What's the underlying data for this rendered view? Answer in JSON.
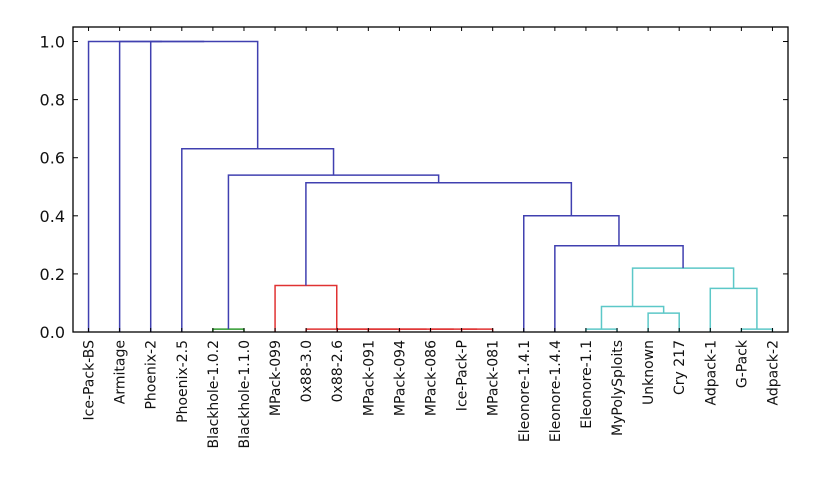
{
  "chart_data": {
    "type": "dendrogram",
    "title": "",
    "xlabel": "",
    "ylabel": "",
    "ylim": [
      0,
      1.05
    ],
    "yticks": [
      "0.0",
      "0.2",
      "0.4",
      "0.6",
      "0.8",
      "1.0"
    ],
    "ytick_values": [
      0.0,
      0.2,
      0.4,
      0.6,
      0.8,
      1.0
    ],
    "leaves": [
      "Ice-Pack-BS",
      "Armitage",
      "Phoenix-2",
      "Phoenix-2.5",
      "Blackhole-1.0.2",
      "Blackhole-1.1.0",
      "MPack-099",
      "0x88-3.0",
      "0x88-2.6",
      "MPack-091",
      "MPack-094",
      "MPack-086",
      "Ice-Pack-P",
      "MPack-081",
      "Eleonore-1.4.1",
      "Eleonore-1.4.4",
      "Eleonore-1.1",
      "MyPolySploits",
      "Unknown",
      "Cry 217",
      "Adpack-1",
      "G-Pack",
      "Adpack-2"
    ],
    "colors": {
      "above_threshold": "#4040b0",
      "green": "#2e9a2e",
      "red": "#e03232",
      "cyan": "#5cc8c8"
    },
    "merges": [
      {
        "a": "L4",
        "b": "L5",
        "height": 0.01,
        "color": "green"
      },
      {
        "a": "L12",
        "b": "L13",
        "height": 0.01,
        "color": "red"
      },
      {
        "a": "L11",
        "b": "M1",
        "height": 0.01,
        "color": "red"
      },
      {
        "a": "L10",
        "b": "M2",
        "height": 0.01,
        "color": "red"
      },
      {
        "a": "L9",
        "b": "M3",
        "height": 0.01,
        "color": "red"
      },
      {
        "a": "L8",
        "b": "M4",
        "height": 0.01,
        "color": "red"
      },
      {
        "a": "L7",
        "b": "M5",
        "height": 0.01,
        "color": "red"
      },
      {
        "a": "L6",
        "b": "M6",
        "height": 0.16,
        "color": "red"
      },
      {
        "a": "L16",
        "b": "L17",
        "height": 0.01,
        "color": "cyan"
      },
      {
        "a": "L18",
        "b": "L19",
        "height": 0.065,
        "color": "cyan"
      },
      {
        "a": "M8",
        "b": "M9",
        "height": 0.088,
        "color": "cyan"
      },
      {
        "a": "L21",
        "b": "L22",
        "height": 0.01,
        "color": "cyan"
      },
      {
        "a": "L20",
        "b": "M11",
        "height": 0.15,
        "color": "cyan"
      },
      {
        "a": "M10",
        "b": "M12",
        "height": 0.22,
        "color": "cyan"
      },
      {
        "a": "L15",
        "b": "M13",
        "height": 0.297,
        "color": "above_threshold"
      },
      {
        "a": "L14",
        "b": "M14",
        "height": 0.4,
        "color": "above_threshold"
      },
      {
        "a": "M7",
        "b": "M15",
        "height": 0.514,
        "color": "above_threshold"
      },
      {
        "a": "M0",
        "b": "M16",
        "height": 0.54,
        "color": "above_threshold"
      },
      {
        "a": "L3",
        "b": "M17",
        "height": 0.631,
        "color": "above_threshold"
      },
      {
        "a": "L2",
        "b": "M18",
        "height": 1.0,
        "color": "above_threshold"
      },
      {
        "a": "L1",
        "b": "M19",
        "height": 1.0,
        "color": "above_threshold"
      },
      {
        "a": "L0",
        "b": "M20",
        "height": 1.0,
        "color": "above_threshold"
      }
    ]
  }
}
